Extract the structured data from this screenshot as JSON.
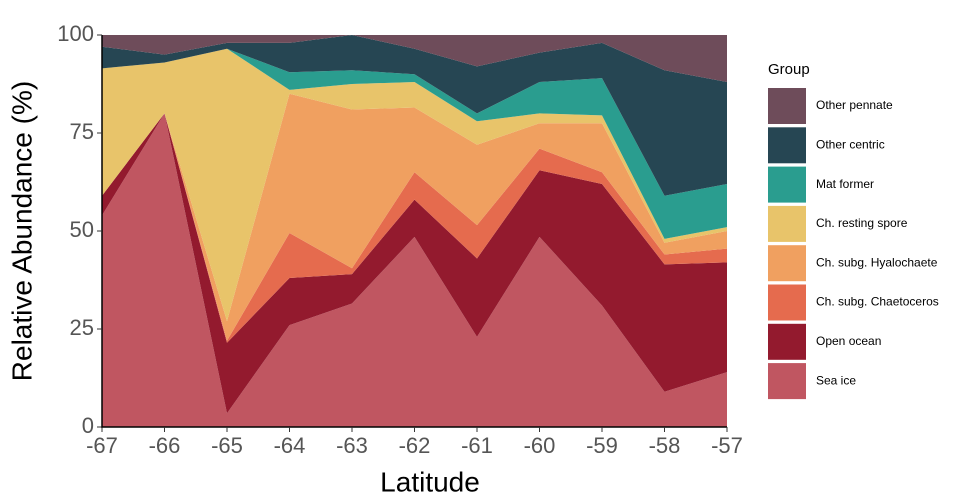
{
  "chart_data": {
    "type": "area",
    "x": [
      -67,
      -66,
      -65,
      -64,
      -63,
      -62,
      -61,
      -60,
      -59,
      -58,
      -57
    ],
    "xlabel": "Latitude",
    "ylabel": "Relative Abundance (%)",
    "xlim": [
      -67,
      -57
    ],
    "xticks": [
      -67,
      -66,
      -65,
      -64,
      -63,
      -62,
      -61,
      -60,
      -59,
      -58,
      -57
    ],
    "ylim": [
      0,
      100
    ],
    "yticks": [
      0,
      25,
      50,
      75,
      100
    ],
    "stacked": true,
    "grid": false,
    "legend_title": "Group",
    "legend_position": "right",
    "series": [
      {
        "name": "Sea ice",
        "color": "#c05661",
        "values": [
          54,
          80,
          3.5,
          26,
          31.5,
          48.5,
          23,
          48.5,
          31,
          9,
          14
        ]
      },
      {
        "name": "Open ocean",
        "color": "#931a2e",
        "values": [
          5,
          0,
          18,
          12,
          7.5,
          9.5,
          20,
          17,
          31,
          32.5,
          28
        ]
      },
      {
        "name": "Ch. subg. Chaetoceros",
        "color": "#e56b4e",
        "values": [
          0,
          0,
          0.5,
          11.5,
          1.5,
          7,
          8.5,
          5.5,
          3,
          2.5,
          3.5
        ]
      },
      {
        "name": "Ch. subg. Hyalochaete",
        "color": "#f0a060",
        "values": [
          0,
          0,
          5,
          35.5,
          40.5,
          16.5,
          20.5,
          6.5,
          12.5,
          3,
          4.5
        ]
      },
      {
        "name": "Ch. resting spore",
        "color": "#e8c46a",
        "values": [
          32.5,
          13,
          69.5,
          1,
          6.5,
          6.5,
          6,
          2.5,
          2,
          1,
          1
        ]
      },
      {
        "name": "Mat former",
        "color": "#2a9d8f",
        "values": [
          0,
          0,
          0,
          4.5,
          3.5,
          2,
          2,
          8,
          9.5,
          11,
          11
        ]
      },
      {
        "name": "Other centric",
        "color": "#264653",
        "values": [
          5.5,
          2,
          1.5,
          7.5,
          9,
          6.5,
          12,
          7.5,
          9,
          32,
          26
        ]
      },
      {
        "name": "Other pennate",
        "color": "#6e4c5a",
        "values": [
          3,
          5,
          2,
          2,
          0,
          3.5,
          8,
          4.5,
          2,
          9,
          12
        ]
      }
    ]
  }
}
